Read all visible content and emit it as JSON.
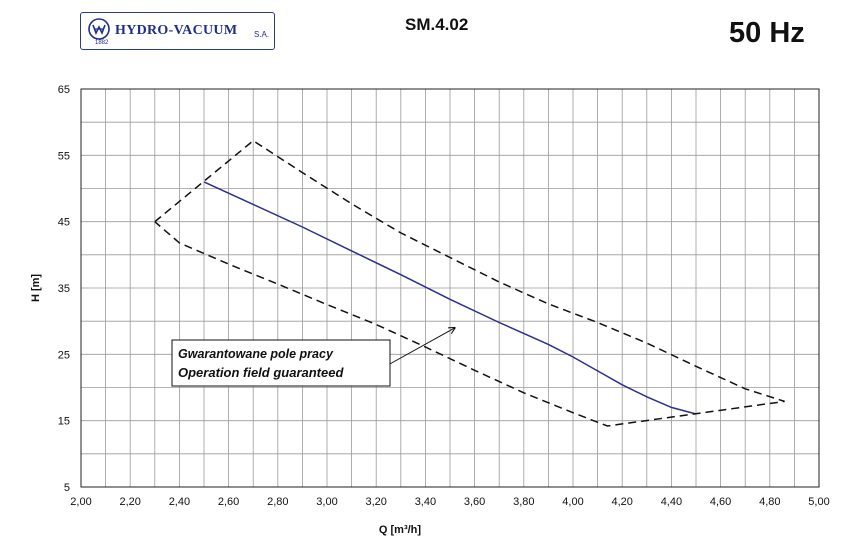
{
  "header": {
    "logo_text": "HYDRO-VACUUM",
    "logo_suffix": "S.A.",
    "logo_year": "1882",
    "model": "SM.4.02",
    "frequency": "50 Hz"
  },
  "chart_data": {
    "type": "line",
    "title": "SM.4.02",
    "xlabel": "Q [m³/h]",
    "ylabel": "H [m]",
    "xlim": [
      2.0,
      5.0
    ],
    "ylim": [
      5,
      65
    ],
    "x_ticks": [
      "2,00",
      "2,20",
      "2,40",
      "2,60",
      "2,80",
      "3,00",
      "3,20",
      "3,40",
      "3,60",
      "3,80",
      "4,00",
      "4,20",
      "4,40",
      "4,60",
      "4,80",
      "5,00"
    ],
    "y_ticks": [
      "65",
      "55",
      "45",
      "35",
      "25",
      "15",
      "5"
    ],
    "grid": true,
    "series": [
      {
        "style": "solid",
        "color": "#2b2f8f",
        "x": [
          2.5,
          2.7,
          2.9,
          3.1,
          3.3,
          3.5,
          3.7,
          3.9,
          4.0,
          4.1,
          4.2,
          4.3,
          4.4,
          4.5
        ],
        "y": [
          51.0,
          47.6,
          44.2,
          40.6,
          37.0,
          33.3,
          29.8,
          26.5,
          24.6,
          22.5,
          20.4,
          18.6,
          17.0,
          16.0
        ]
      },
      {
        "style": "dashed",
        "color": "#111111",
        "x": [
          2.3,
          2.7,
          2.9,
          3.1,
          3.3,
          3.5,
          3.7,
          3.9,
          4.1,
          4.3,
          4.5,
          4.7,
          4.86,
          4.14,
          4.0,
          3.8,
          3.6,
          3.4,
          3.2,
          3.0,
          2.8,
          2.6,
          2.4,
          2.3
        ],
        "y": [
          45.0,
          57.2,
          52.4,
          47.7,
          43.3,
          39.6,
          35.9,
          32.6,
          29.8,
          26.7,
          23.2,
          19.8,
          17.9,
          14.2,
          16.2,
          19.2,
          22.6,
          26.1,
          29.5,
          32.5,
          35.6,
          38.6,
          41.8,
          45.0
        ]
      }
    ],
    "annotation": {
      "line1": "Gwarantowane pole pracy",
      "line2": "Operation field guaranteed",
      "arrow_tip": [
        3.52,
        29.0
      ]
    }
  }
}
